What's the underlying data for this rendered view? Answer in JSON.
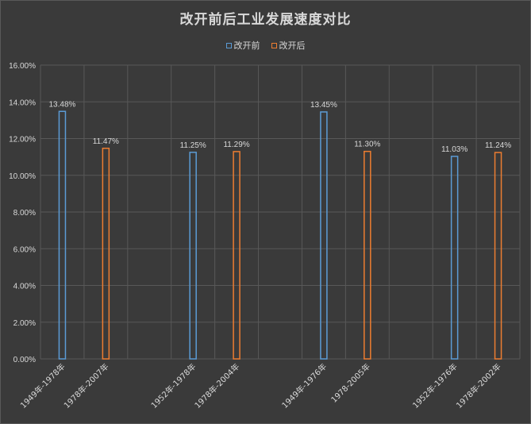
{
  "colors": {
    "series_before": "#5b9bd5",
    "series_after": "#ed7d31",
    "grid": "#585858",
    "text": "#d9d9d9"
  },
  "chart_data": {
    "type": "bar",
    "title": "改开前后工业发展速度对比",
    "legend_position": "top",
    "grid": true,
    "ylim": [
      0,
      0.16
    ],
    "yticks": [
      "0.00%",
      "2.00%",
      "4.00%",
      "6.00%",
      "8.00%",
      "10.00%",
      "12.00%",
      "14.00%",
      "16.00%"
    ],
    "categories": [
      "1949年-1978年",
      "1978年-2007年",
      "",
      "1952年-1978年",
      "1978年-2004年",
      "",
      "1949年-1976年",
      "1978-2005年",
      "",
      "1952年-1976年",
      "1978年-2002年"
    ],
    "series": [
      {
        "name": "改开前",
        "values": [
          0.1348,
          null,
          null,
          0.1125,
          null,
          null,
          0.1345,
          null,
          null,
          0.1103,
          null
        ]
      },
      {
        "name": "改开后",
        "values": [
          null,
          0.1147,
          null,
          null,
          0.1129,
          null,
          null,
          0.113,
          null,
          null,
          0.1124
        ]
      }
    ],
    "data_labels": [
      "13.48%",
      "11.47%",
      "",
      "11.25%",
      "11.29%",
      "",
      "13.45%",
      "11.30%",
      "",
      "11.03%",
      "11.24%"
    ]
  }
}
